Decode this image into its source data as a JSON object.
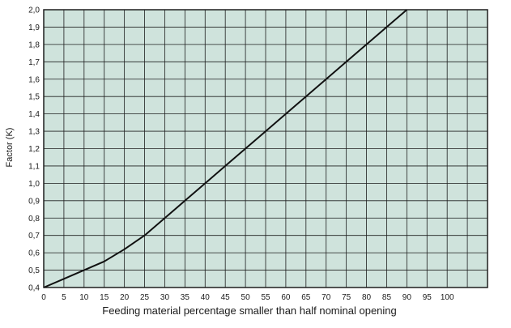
{
  "chart_data": {
    "type": "line",
    "title": "",
    "xlabel": "Feeding material percentage smaller than half nominal opening",
    "ylabel": "Factor (K)",
    "xlim": [
      0,
      110
    ],
    "ylim": [
      0.4,
      2.0
    ],
    "grid": true,
    "x_ticks": [
      0,
      5,
      10,
      15,
      20,
      25,
      30,
      35,
      40,
      45,
      50,
      55,
      60,
      65,
      70,
      75,
      80,
      85,
      90,
      95,
      100
    ],
    "x_tick_labels": [
      "0",
      "5",
      "10",
      "15",
      "20",
      "25",
      "30",
      "35",
      "40",
      "45",
      "50",
      "55",
      "60",
      "65",
      "70",
      "75",
      "80",
      "85",
      "90",
      "95",
      "100"
    ],
    "y_ticks": [
      0.4,
      0.5,
      0.6,
      0.7,
      0.8,
      0.9,
      1.0,
      1.1,
      1.2,
      1.3,
      1.4,
      1.5,
      1.6,
      1.7,
      1.8,
      1.9,
      2.0
    ],
    "y_tick_labels": [
      "0,4",
      "0,5",
      "0,6",
      "0,7",
      "0,8",
      "0,9",
      "1,0",
      "1,1",
      "1,2",
      "1,3",
      "1,4",
      "1,5",
      "1,6",
      "1,7",
      "1,8",
      "1,9",
      "2,0"
    ],
    "series": [
      {
        "x": [
          0,
          5,
          10,
          15,
          20,
          25,
          30,
          35,
          40,
          45,
          50,
          55,
          60,
          65,
          70,
          75,
          80,
          85,
          90
        ],
        "y": [
          0.4,
          0.45,
          0.5,
          0.55,
          0.62,
          0.7,
          0.8,
          0.9,
          1.0,
          1.1,
          1.2,
          1.3,
          1.4,
          1.5,
          1.6,
          1.7,
          1.8,
          1.9,
          2.0
        ]
      }
    ],
    "colors": {
      "plot_background": "#cfe3dc",
      "grid": "#1f1f1f",
      "line": "#111111"
    }
  }
}
